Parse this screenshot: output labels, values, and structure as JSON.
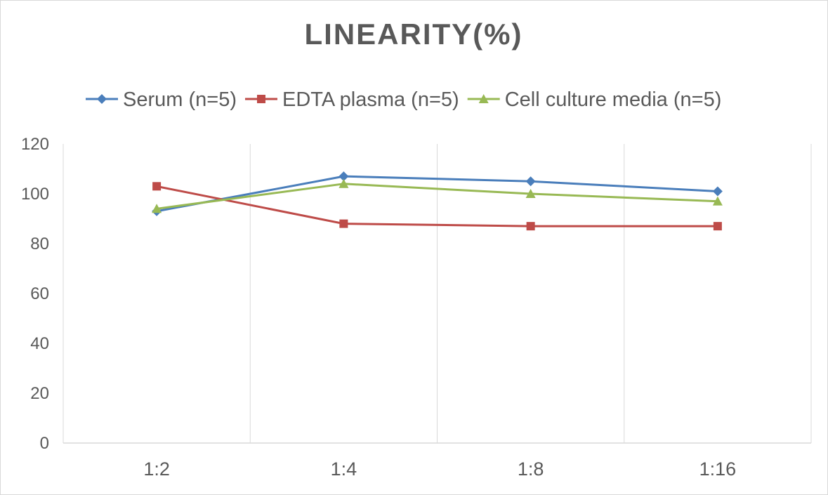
{
  "chart_data": {
    "type": "line",
    "title": "LINEARITY(%)",
    "categories": [
      "1:2",
      "1:4",
      "1:8",
      "1:16"
    ],
    "ylim": [
      0,
      120
    ],
    "yticks": [
      "0",
      "20",
      "40",
      "60",
      "80",
      "100",
      "120"
    ],
    "grid": "vertical",
    "legend": "top",
    "series": [
      {
        "name": "Serum (n=5)",
        "values": [
          93,
          107,
          105,
          101
        ],
        "color": "#4a7ebb",
        "marker": "diamond"
      },
      {
        "name": "EDTA plasma (n=5)",
        "values": [
          103,
          88,
          87,
          87
        ],
        "color": "#be4b48",
        "marker": "square"
      },
      {
        "name": "Cell culture media (n=5)",
        "values": [
          94,
          104,
          100,
          97
        ],
        "color": "#98b954",
        "marker": "triangle"
      }
    ]
  }
}
